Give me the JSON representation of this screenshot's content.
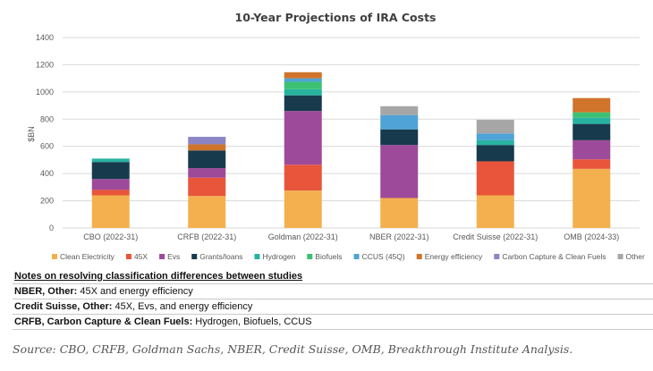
{
  "chart_data": {
    "type": "bar",
    "stacked": true,
    "title": "10-Year Projections of IRA Costs",
    "xlabel": "",
    "ylabel": "$BN",
    "ylim": [
      0,
      1400
    ],
    "yticks": [
      0,
      200,
      400,
      600,
      800,
      1000,
      1200,
      1400
    ],
    "grid": true,
    "legend_position": "bottom",
    "categories": [
      "CBO (2022-31)",
      "CRFB (2022-31)",
      "Goldman (2022-31)",
      "NBER (2022-31)",
      "Credit Suisse (2022-31)",
      "OMB (2024-33)"
    ],
    "series": [
      {
        "name": "Clean Electricity",
        "color": "#F4B04E",
        "values": [
          240,
          235,
          275,
          220,
          240,
          435
        ]
      },
      {
        "name": "45X",
        "color": "#E8553A",
        "values": [
          40,
          135,
          190,
          0,
          250,
          70
        ]
      },
      {
        "name": "Evs",
        "color": "#9E4A9A",
        "values": [
          80,
          70,
          395,
          390,
          0,
          140
        ]
      },
      {
        "name": "Grants/loans",
        "color": "#173A4D",
        "values": [
          125,
          130,
          115,
          115,
          120,
          120
        ]
      },
      {
        "name": "Hydrogen",
        "color": "#27B3A0",
        "values": [
          25,
          0,
          45,
          0,
          35,
          45
        ]
      },
      {
        "name": "Biofuels",
        "color": "#3CC173",
        "values": [
          0,
          0,
          55,
          0,
          0,
          40
        ]
      },
      {
        "name": "CCUS (45Q)",
        "color": "#4FA3D6",
        "values": [
          0,
          0,
          25,
          105,
          50,
          0
        ]
      },
      {
        "name": "Energy efficiency",
        "color": "#D0742C",
        "values": [
          0,
          45,
          45,
          0,
          0,
          105
        ]
      },
      {
        "name": "Carbon Capture & Clean Fuels",
        "color": "#8B85C5",
        "values": [
          0,
          55,
          0,
          0,
          0,
          0
        ]
      },
      {
        "name": "Other",
        "color": "#A6A6A6",
        "values": [
          0,
          0,
          0,
          65,
          100,
          0
        ]
      }
    ]
  },
  "notes": {
    "heading": "Notes on resolving classification differences between studies",
    "rows": [
      {
        "label": "NBER, Other:",
        "text": " 45X and energy efficiency"
      },
      {
        "label": "Credit Suisse, Other:",
        "text": " 45X, Evs, and energy efficiency"
      },
      {
        "label": "CRFB, Carbon Capture & Clean Fuels:",
        "text": " Hydrogen, Biofuels, CCUS"
      }
    ]
  },
  "source": "Source: CBO, CRFB, Goldman Sachs, NBER, Credit Suisse, OMB, Breakthrough Institute Analysis."
}
